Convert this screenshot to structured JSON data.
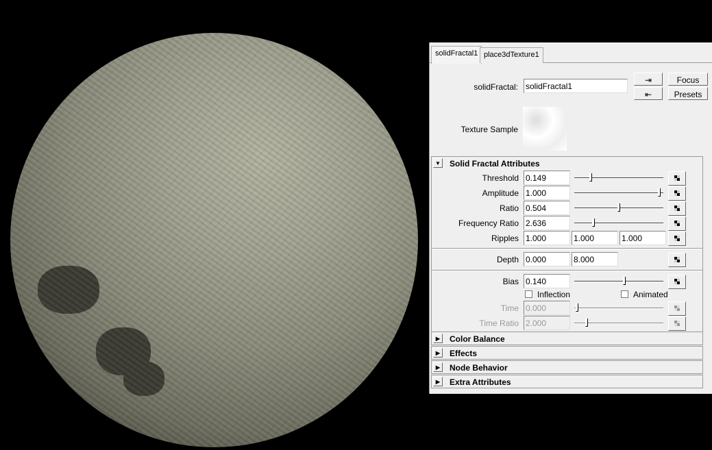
{
  "tabs": [
    {
      "label": "solidFractal1",
      "active": true
    },
    {
      "label": "place3dTexture1",
      "active": false
    }
  ],
  "header": {
    "node_label": "solidFractal:",
    "node_value": "solidFractal1",
    "focus": "Focus",
    "presets": "Presets",
    "texture_sample": "Texture Sample",
    "input_icon": "input-connections-icon",
    "output_icon": "output-connections-icon"
  },
  "solid_fractal": {
    "title": "Solid Fractal Attributes",
    "expanded": true,
    "threshold": {
      "label": "Threshold",
      "value": "0.149",
      "slider": 0.18
    },
    "amplitude": {
      "label": "Amplitude",
      "value": "1.000",
      "slider": 0.98
    },
    "ratio": {
      "label": "Ratio",
      "value": "0.504",
      "slider": 0.51
    },
    "frequency_ratio": {
      "label": "Frequency Ratio",
      "value": "2.636",
      "slider": 0.21
    },
    "ripples": {
      "label": "Ripples",
      "values": [
        "1.000",
        "1.000",
        "1.000"
      ]
    },
    "depth": {
      "label": "Depth",
      "values": [
        "0.000",
        "8.000"
      ]
    },
    "bias": {
      "label": "Bias",
      "value": "0.140",
      "slider": 0.57
    },
    "inflection": {
      "label": "Inflection",
      "checked": false
    },
    "animated": {
      "label": "Animated",
      "checked": false
    },
    "time": {
      "label": "Time",
      "value": "0.000",
      "slider": 0.02,
      "disabled": true
    },
    "time_ratio": {
      "label": "Time Ratio",
      "value": "2.000",
      "slider": 0.13,
      "disabled": true
    }
  },
  "collapsed_sections": [
    "Color Balance",
    "Effects",
    "Node Behavior",
    "Extra Attributes"
  ]
}
